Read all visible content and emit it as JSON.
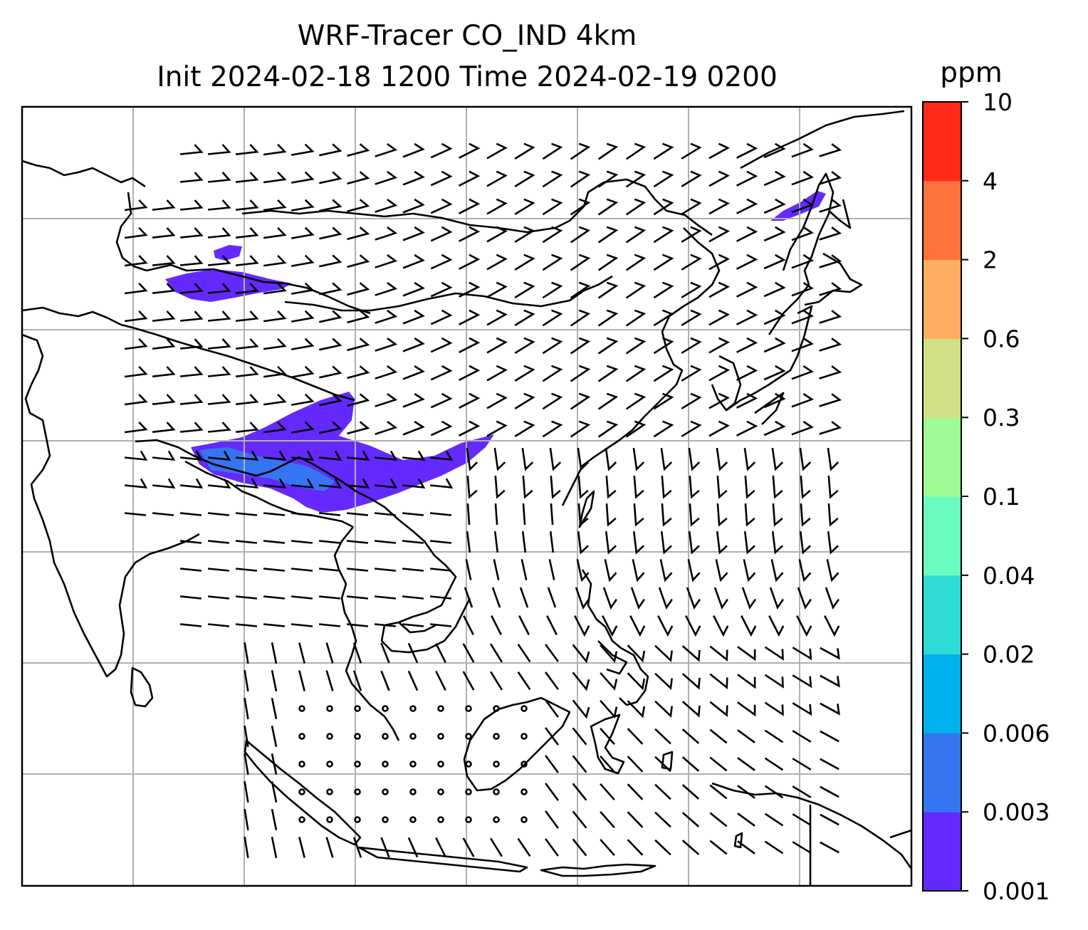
{
  "title": {
    "line1": "WRF-Tracer CO_IND 4km",
    "line2": "Init 2024-02-18 1200 Time 2024-02-19 0200"
  },
  "colorbar": {
    "unit": "ppm",
    "levels": [
      "0.001",
      "0.003",
      "0.006",
      "0.02",
      "0.04",
      "0.1",
      "0.3",
      "0.6",
      "2",
      "4",
      "10"
    ],
    "colors": [
      "#6429fc",
      "#3575f2",
      "#00b1ec",
      "#2fdbd5",
      "#6bfbbe",
      "#9ffb96",
      "#d1df85",
      "#feae62",
      "#fe703c",
      "#ff2a19"
    ]
  },
  "map": {
    "gridlines": true,
    "gridline_color": "#b0b0b0",
    "coastline_color": "#000000",
    "plume_color": "#6429fc",
    "plume_core_color": "#3575f2"
  }
}
